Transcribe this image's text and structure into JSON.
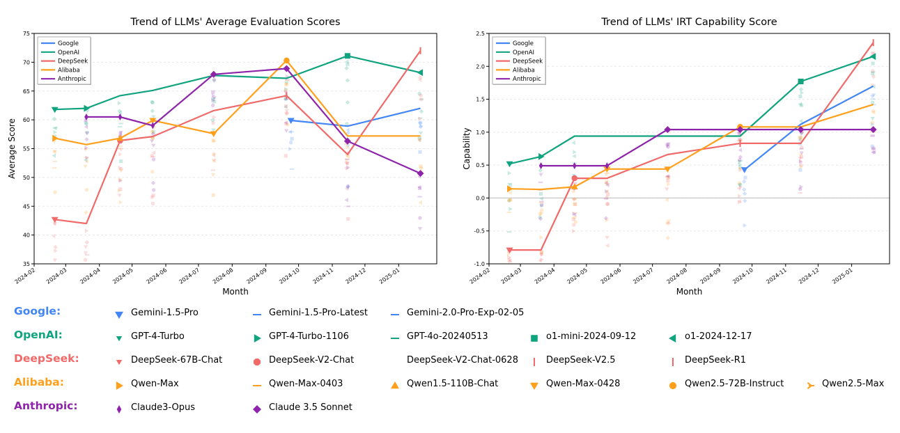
{
  "vendor_colors": {
    "Google": "#4285F4",
    "OpenAI": "#10A37F",
    "DeepSeek": "#F06A6A",
    "Alibaba": "#FF9F1C",
    "Anthropic": "#8E24AA"
  },
  "chart_data": [
    {
      "type": "line",
      "title": "Trend of LLMs' Average Evaluation Scores",
      "xlabel": "Month",
      "ylabel": "Average Score",
      "ylim": [
        35,
        75
      ],
      "yticks": [
        35,
        40,
        45,
        50,
        55,
        60,
        65,
        70,
        75
      ],
      "xticks": [
        "2024-02",
        "2024-03",
        "2024-04",
        "2024-05",
        "2024-06",
        "2024-07",
        "2024-08",
        "2024-09",
        "2024-10",
        "2024-11",
        "2024-12",
        "2025-01"
      ],
      "grid": true,
      "legend": {
        "placement": "top-left",
        "entries": [
          "Google",
          "OpenAI",
          "DeepSeek",
          "Alibaba",
          "Anthropic"
        ]
      },
      "series": [
        {
          "name": "Google",
          "points": [
            {
              "x": "2024-09-24",
              "y": 59.9,
              "marker": "tri-down"
            },
            {
              "x": "2024-11-15",
              "y": 58.9,
              "marker": "none"
            },
            {
              "x": "2025-01-21",
              "y": 62.0,
              "marker": "none"
            }
          ]
        },
        {
          "name": "OpenAI",
          "points": [
            {
              "x": "2024-02-20",
              "y": 61.8,
              "marker": "tri-down"
            },
            {
              "x": "2024-03-20",
              "y": 62.0,
              "marker": "tri-right"
            },
            {
              "x": "2024-04-20",
              "y": 64.2,
              "marker": "none"
            },
            {
              "x": "2024-05-20",
              "y": 65.1,
              "marker": "none"
            },
            {
              "x": "2024-07-15",
              "y": 67.7,
              "marker": "none"
            },
            {
              "x": "2024-09-20",
              "y": 67.2,
              "marker": "none"
            },
            {
              "x": "2024-11-15",
              "y": 71.1,
              "marker": "square"
            },
            {
              "x": "2025-01-21",
              "y": 68.2,
              "marker": "tri-left"
            }
          ]
        },
        {
          "name": "DeepSeek",
          "points": [
            {
              "x": "2024-02-20",
              "y": 42.7,
              "marker": "tri-down"
            },
            {
              "x": "2024-03-20",
              "y": 42.0,
              "marker": "none"
            },
            {
              "x": "2024-04-20",
              "y": 56.4,
              "marker": "circle"
            },
            {
              "x": "2024-05-20",
              "y": 57.1,
              "marker": "none"
            },
            {
              "x": "2024-07-15",
              "y": 61.6,
              "marker": "none"
            },
            {
              "x": "2024-09-20",
              "y": 64.2,
              "marker": "vline"
            },
            {
              "x": "2024-11-15",
              "y": 54.0,
              "marker": "none"
            },
            {
              "x": "2025-01-21",
              "y": 72.0,
              "marker": "vline"
            }
          ]
        },
        {
          "name": "Alibaba",
          "points": [
            {
              "x": "2024-02-20",
              "y": 56.8,
              "marker": "tri-right"
            },
            {
              "x": "2024-03-20",
              "y": 55.7,
              "marker": "none"
            },
            {
              "x": "2024-04-20",
              "y": 56.8,
              "marker": "tri-up"
            },
            {
              "x": "2024-05-20",
              "y": 59.9,
              "marker": "tri-down"
            },
            {
              "x": "2024-07-15",
              "y": 57.6,
              "marker": "tri-down"
            },
            {
              "x": "2024-09-20",
              "y": 70.3,
              "marker": "circle"
            },
            {
              "x": "2024-11-15",
              "y": 57.2,
              "marker": "none"
            },
            {
              "x": "2025-01-21",
              "y": 57.2,
              "marker": "none"
            }
          ]
        },
        {
          "name": "Anthropic",
          "points": [
            {
              "x": "2024-03-20",
              "y": 60.5,
              "marker": "thin-diamond"
            },
            {
              "x": "2024-04-20",
              "y": 60.5,
              "marker": "thin-diamond"
            },
            {
              "x": "2024-05-20",
              "y": 59.0,
              "marker": "thin-diamond"
            },
            {
              "x": "2024-07-15",
              "y": 67.9,
              "marker": "diamond"
            },
            {
              "x": "2024-09-20",
              "y": 68.9,
              "marker": "diamond"
            },
            {
              "x": "2024-11-15",
              "y": 56.3,
              "marker": "diamond"
            },
            {
              "x": "2025-01-21",
              "y": 50.7,
              "marker": "diamond"
            }
          ]
        }
      ]
    },
    {
      "type": "line",
      "title": "Trend of LLMs' IRT Capability Score",
      "xlabel": "Month",
      "ylabel": "Capability",
      "ylim": [
        -1.0,
        2.5
      ],
      "yticks": [
        -1.0,
        -0.5,
        0.0,
        0.5,
        1.0,
        1.5,
        2.0,
        2.5
      ],
      "xticks": [
        "2024-02",
        "2024-03",
        "2024-04",
        "2024-05",
        "2024-06",
        "2024-07",
        "2024-08",
        "2024-09",
        "2024-10",
        "2024-11",
        "2024-12",
        "2025-01"
      ],
      "grid": true,
      "zero_line": true,
      "legend": {
        "placement": "top-left",
        "entries": [
          "Google",
          "OpenAI",
          "DeepSeek",
          "Alibaba",
          "Anthropic"
        ]
      },
      "series": [
        {
          "name": "Google",
          "points": [
            {
              "x": "2024-09-24",
              "y": 0.43,
              "marker": "tri-down"
            },
            {
              "x": "2024-11-15",
              "y": 1.12,
              "marker": "none"
            },
            {
              "x": "2025-01-21",
              "y": 1.7,
              "marker": "none"
            }
          ]
        },
        {
          "name": "OpenAI",
          "points": [
            {
              "x": "2024-02-20",
              "y": 0.52,
              "marker": "tri-down"
            },
            {
              "x": "2024-03-20",
              "y": 0.63,
              "marker": "tri-right"
            },
            {
              "x": "2024-04-20",
              "y": 0.94,
              "marker": "none"
            },
            {
              "x": "2024-09-20",
              "y": 0.94,
              "marker": "none"
            },
            {
              "x": "2024-11-15",
              "y": 1.77,
              "marker": "square"
            },
            {
              "x": "2025-01-21",
              "y": 2.15,
              "marker": "tri-left"
            }
          ]
        },
        {
          "name": "DeepSeek",
          "points": [
            {
              "x": "2024-02-20",
              "y": -0.79,
              "marker": "tri-down"
            },
            {
              "x": "2024-03-20",
              "y": -0.79,
              "marker": "none"
            },
            {
              "x": "2024-04-20",
              "y": 0.3,
              "marker": "circle"
            },
            {
              "x": "2024-05-20",
              "y": 0.3,
              "marker": "none"
            },
            {
              "x": "2024-07-15",
              "y": 0.66,
              "marker": "none"
            },
            {
              "x": "2024-09-20",
              "y": 0.83,
              "marker": "vline"
            },
            {
              "x": "2024-11-15",
              "y": 0.83,
              "marker": "none"
            },
            {
              "x": "2025-01-21",
              "y": 2.36,
              "marker": "vline"
            }
          ]
        },
        {
          "name": "Alibaba",
          "points": [
            {
              "x": "2024-02-20",
              "y": 0.14,
              "marker": "tri-right"
            },
            {
              "x": "2024-03-20",
              "y": 0.13,
              "marker": "none"
            },
            {
              "x": "2024-04-20",
              "y": 0.17,
              "marker": "tri-up"
            },
            {
              "x": "2024-05-20",
              "y": 0.44,
              "marker": "tri-down"
            },
            {
              "x": "2024-07-15",
              "y": 0.44,
              "marker": "tri-down"
            },
            {
              "x": "2024-09-20",
              "y": 1.08,
              "marker": "circle"
            },
            {
              "x": "2024-11-15",
              "y": 1.08,
              "marker": "none"
            },
            {
              "x": "2025-01-21",
              "y": 1.42,
              "marker": "none"
            }
          ]
        },
        {
          "name": "Anthropic",
          "points": [
            {
              "x": "2024-03-20",
              "y": 0.49,
              "marker": "thin-diamond"
            },
            {
              "x": "2024-04-20",
              "y": 0.49,
              "marker": "thin-diamond"
            },
            {
              "x": "2024-05-20",
              "y": 0.49,
              "marker": "thin-diamond"
            },
            {
              "x": "2024-07-15",
              "y": 1.04,
              "marker": "diamond"
            },
            {
              "x": "2024-09-20",
              "y": 1.04,
              "marker": "diamond"
            },
            {
              "x": "2024-11-15",
              "y": 1.04,
              "marker": "diamond"
            },
            {
              "x": "2025-01-21",
              "y": 1.04,
              "marker": "diamond"
            }
          ]
        }
      ]
    }
  ],
  "model_legend": [
    {
      "vendor": "Google",
      "label": "Google:",
      "models": [
        {
          "name": "Gemini-1.5-Pro",
          "marker": "tri-down"
        },
        {
          "name": "Gemini-1.5-Pro-Latest",
          "marker": "hline"
        },
        {
          "name": "Gemini-2.0-Pro-Exp-02-05",
          "marker": "hline"
        }
      ]
    },
    {
      "vendor": "OpenAI",
      "label": "OpenAI:",
      "models": [
        {
          "name": "GPT-4-Turbo",
          "marker": "tri-down-small"
        },
        {
          "name": "GPT-4-Turbo-1106",
          "marker": "tri-right"
        },
        {
          "name": "GPT-4o-20240513",
          "marker": "hline"
        },
        {
          "name": "o1-mini-2024-09-12",
          "marker": "square"
        },
        {
          "name": "o1-2024-12-17",
          "marker": "tri-left"
        }
      ]
    },
    {
      "vendor": "DeepSeek",
      "label": "DeepSeek:",
      "models": [
        {
          "name": "DeepSeek-67B-Chat",
          "marker": "tri-down-small"
        },
        {
          "name": "DeepSeek-V2-Chat",
          "marker": "octagon"
        },
        {
          "name": "DeepSeek-V2-Chat-0628",
          "marker": "none"
        },
        {
          "name": "DeepSeek-V2.5",
          "marker": "vline"
        },
        {
          "name": "DeepSeek-R1",
          "marker": "vline"
        }
      ]
    },
    {
      "vendor": "Alibaba",
      "label": "Alibaba:",
      "models": [
        {
          "name": "Qwen-Max",
          "marker": "tri-right"
        },
        {
          "name": "Qwen-Max-0403",
          "marker": "hline"
        },
        {
          "name": "Qwen1.5-110B-Chat",
          "marker": "tri-up"
        },
        {
          "name": "Qwen-Max-0428",
          "marker": "tri-down"
        },
        {
          "name": "Qwen2.5-72B-Instruct",
          "marker": "circle"
        },
        {
          "name": "Qwen2.5-Max",
          "marker": "tri-right-open"
        }
      ]
    },
    {
      "vendor": "Anthropic",
      "label": "Anthropic:",
      "models": [
        {
          "name": "Claude3-Opus",
          "marker": "thin-diamond"
        },
        {
          "name": "Claude 3.5 Sonnet",
          "marker": "diamond"
        }
      ]
    }
  ]
}
